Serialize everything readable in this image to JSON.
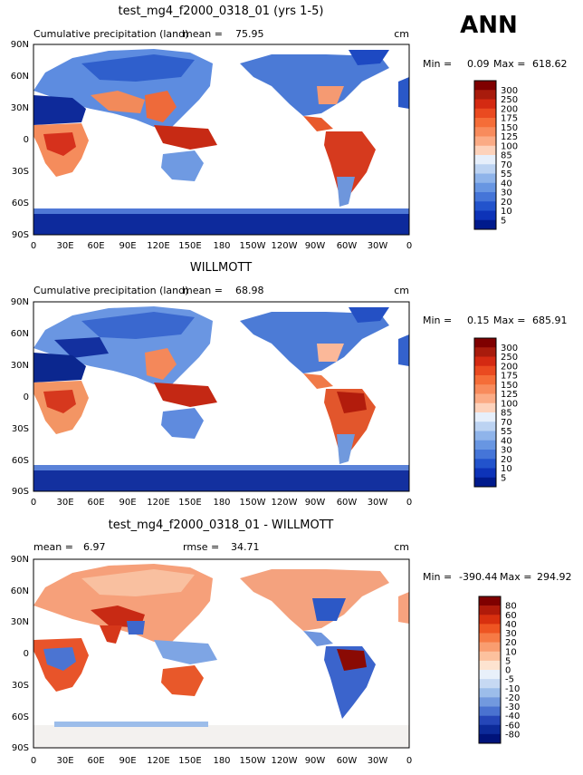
{
  "season_label": "ANN",
  "chart_data": [
    {
      "type": "heatmap",
      "title": "test_mg4_f2000_0318_01 (yrs 1-5)",
      "subtitle": "Cumulative precipitation (land)",
      "mean_label": "mean =",
      "mean_value": "75.95",
      "units": "cm",
      "min_label": "Min =",
      "min_value": "0.09",
      "max_label": "Max =",
      "max_value": "618.62",
      "x_ticks": [
        "0",
        "30E",
        "60E",
        "90E",
        "120E",
        "150E",
        "180",
        "150W",
        "120W",
        "90W",
        "60W",
        "30W",
        "0"
      ],
      "y_ticks": [
        "90N",
        "60N",
        "30N",
        "0",
        "30S",
        "60S",
        "90S"
      ],
      "colorbar_levels": [
        "300",
        "250",
        "200",
        "175",
        "150",
        "125",
        "100",
        "85",
        "70",
        "55",
        "40",
        "30",
        "20",
        "10",
        "5"
      ],
      "colorbar_colors": [
        "#7f0000",
        "#a81b0c",
        "#d42a12",
        "#ea4a20",
        "#f56d38",
        "#f88b5c",
        "#fbab85",
        "#fdd2bb",
        "#e6effb",
        "#bcd3f2",
        "#8fb4ea",
        "#6896e2",
        "#4575d8",
        "#2253cc",
        "#0d33b8",
        "#001a8c"
      ]
    },
    {
      "type": "heatmap",
      "title": "WILLMOTT",
      "subtitle": "Cumulative precipitation (land)",
      "mean_label": "mean =",
      "mean_value": "68.98",
      "units": "cm",
      "min_label": "Min =",
      "min_value": "0.15",
      "max_label": "Max =",
      "max_value": "685.91",
      "x_ticks": [
        "0",
        "30E",
        "60E",
        "90E",
        "120E",
        "150E",
        "180",
        "150W",
        "120W",
        "90W",
        "60W",
        "30W",
        "0"
      ],
      "y_ticks": [
        "90N",
        "60N",
        "30N",
        "0",
        "30S",
        "60S",
        "90S"
      ],
      "colorbar_levels": [
        "300",
        "250",
        "200",
        "175",
        "150",
        "125",
        "100",
        "85",
        "70",
        "55",
        "40",
        "30",
        "20",
        "10",
        "5"
      ],
      "colorbar_colors": [
        "#7f0000",
        "#a81b0c",
        "#d42a12",
        "#ea4a20",
        "#f56d38",
        "#f88b5c",
        "#fbab85",
        "#fdd2bb",
        "#e6effb",
        "#bcd3f2",
        "#8fb4ea",
        "#6896e2",
        "#4575d8",
        "#2253cc",
        "#0d33b8",
        "#001a8c"
      ]
    },
    {
      "type": "heatmap",
      "title": "test_mg4_f2000_0318_01 - WILLMOTT",
      "subtitle": "",
      "mean_label": "mean =",
      "mean_value": "6.97",
      "rmse_label": "rmse =",
      "rmse_value": "34.71",
      "units": "cm",
      "min_label": "Min =",
      "min_value": "-390.44",
      "max_label": "Max =",
      "max_value": "294.92",
      "x_ticks": [
        "0",
        "30E",
        "60E",
        "90E",
        "120E",
        "150E",
        "180",
        "150W",
        "120W",
        "90W",
        "60W",
        "30W",
        "0"
      ],
      "y_ticks": [
        "90N",
        "60N",
        "30N",
        "0",
        "30S",
        "60S",
        "90S"
      ],
      "colorbar_levels": [
        "80",
        "60",
        "40",
        "30",
        "20",
        "10",
        "5",
        "0",
        "-5",
        "-10",
        "-20",
        "-30",
        "-40",
        "-60",
        "-80"
      ],
      "colorbar_colors": [
        "#7f0000",
        "#b01a0a",
        "#d8300f",
        "#ee5522",
        "#f67a45",
        "#f99d70",
        "#fcc19e",
        "#fde3d0",
        "#e8f0fa",
        "#c6d9f3",
        "#9cbdea",
        "#7299de",
        "#4a72d0",
        "#2546b8",
        "#0c2a99",
        "#00137a"
      ]
    }
  ]
}
